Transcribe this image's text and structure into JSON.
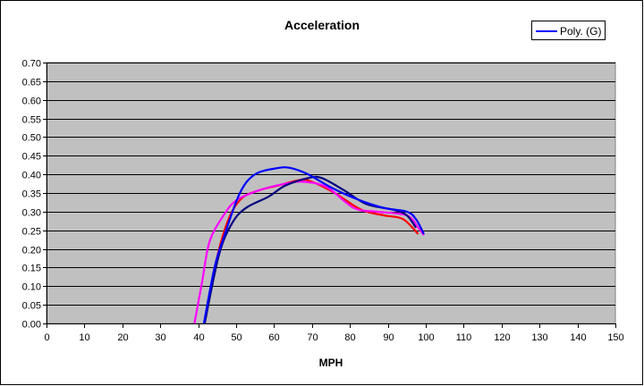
{
  "chart_data": {
    "type": "line",
    "title": "Acceleration",
    "xlabel": "MPH",
    "ylabel": "",
    "xlim": [
      0,
      150
    ],
    "ylim": [
      0,
      0.7
    ],
    "xticks": [
      "0",
      "10",
      "20",
      "30",
      "40",
      "50",
      "60",
      "70",
      "80",
      "90",
      "100",
      "110",
      "120",
      "130",
      "140",
      "150"
    ],
    "yticks": [
      "0.00",
      "0.05",
      "0.10",
      "0.15",
      "0.20",
      "0.25",
      "0.30",
      "0.35",
      "0.40",
      "0.45",
      "0.50",
      "0.55",
      "0.60",
      "0.65",
      "0.70"
    ],
    "grid": "horizontal",
    "legend_placement": "top-right",
    "plot_background": "#C0C0C0",
    "series": [
      {
        "color": "#FF0000",
        "x": [
          41.7,
          44.8,
          48,
          51.4,
          56,
          61,
          67,
          70,
          76,
          83,
          89,
          94,
          98
        ],
        "y": [
          0,
          0.17,
          0.28,
          0.335,
          0.357,
          0.37,
          0.385,
          0.38,
          0.35,
          0.305,
          0.29,
          0.28,
          0.24
        ]
      },
      {
        "color": "#FF00FF",
        "x": [
          39,
          41,
          43,
          46.7,
          50,
          56,
          63,
          68,
          74,
          81,
          87,
          95,
          98,
          99.5
        ],
        "y": [
          0,
          0.11,
          0.22,
          0.29,
          0.33,
          0.357,
          0.375,
          0.38,
          0.365,
          0.31,
          0.3,
          0.29,
          0.257,
          0.237
        ]
      },
      {
        "color": "#000080",
        "x": [
          41.7,
          45.5,
          49,
          52.6,
          58.5,
          63,
          69,
          72.6,
          78.5,
          84.4,
          91.5,
          95,
          97.4
        ],
        "y": [
          0,
          0.185,
          0.27,
          0.31,
          0.34,
          0.37,
          0.39,
          0.39,
          0.357,
          0.32,
          0.305,
          0.29,
          0.257
        ]
      },
      {
        "name": "Poly. (G)",
        "color": "#0000FF",
        "x": [
          41.5,
          44.3,
          46.7,
          51,
          55,
          61,
          64.4,
          69,
          75,
          82,
          89,
          95,
          97.4,
          99.5
        ],
        "y": [
          0,
          0.15,
          0.23,
          0.35,
          0.4,
          0.417,
          0.417,
          0.4,
          0.365,
          0.333,
          0.31,
          0.3,
          0.28,
          0.24
        ]
      }
    ],
    "legend": [
      {
        "label": "Poly. (G)",
        "color": "#0000FF"
      }
    ]
  }
}
